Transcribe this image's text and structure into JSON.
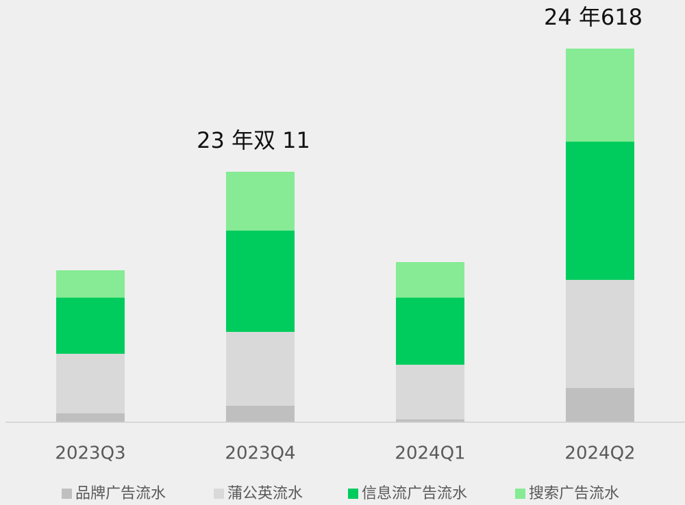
{
  "chart_data": {
    "type": "bar",
    "stacked": true,
    "categories": [
      "2023Q3",
      "2023Q4",
      "2024Q1",
      "2024Q2"
    ],
    "series": [
      {
        "name": "品牌广告流水",
        "color": "#bfbfbf",
        "values": [
          13,
          24,
          4,
          50
        ]
      },
      {
        "name": "蒲公英流水",
        "color": "#d9d9d9",
        "values": [
          87,
          108,
          80,
          158
        ]
      },
      {
        "name": "信息流广告流水",
        "color": "#00cc5e",
        "values": [
          82,
          148,
          98,
          202
        ]
      },
      {
        "name": "搜索广告流水",
        "color": "#86eb94",
        "values": [
          40,
          86,
          52,
          136
        ]
      }
    ],
    "ylim": [
      0,
      600
    ],
    "annotations": [
      {
        "text": "23 年双 11",
        "category": "2023Q4"
      },
      {
        "text": "24 年618",
        "category": "2024Q2"
      }
    ],
    "legend": "bottom"
  }
}
